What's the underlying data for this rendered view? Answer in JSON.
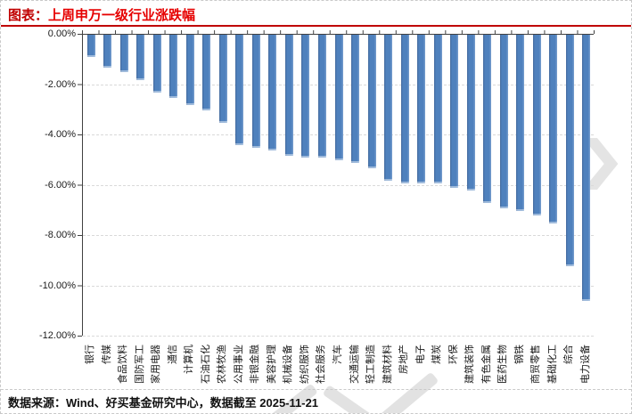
{
  "header": {
    "prefix": "图表：",
    "title": "上周申万一级行业涨跌幅"
  },
  "footer": {
    "source": "数据来源：Wind、好买基金研究中心，数据截至 2025-11-21"
  },
  "icons": {
    "watermark_chevron": "❯"
  },
  "colors": {
    "bar": "#4f81bd",
    "title_red": "#e60000",
    "rule_red": "#c00000",
    "gridline": "#d9d9d9",
    "axis": "#404040"
  },
  "chart_data": {
    "type": "bar",
    "title": "上周申万一级行业涨跌幅",
    "xlabel": "",
    "ylabel": "",
    "legend": "none",
    "grid": "horizontal dashed",
    "ylim": [
      -12,
      0
    ],
    "yticks": [
      "0.00%",
      "-2.00%",
      "-4.00%",
      "-6.00%",
      "-8.00%",
      "-10.00%",
      "-12.00%"
    ],
    "categories": [
      "银行",
      "传媒",
      "食品饮料",
      "国防军工",
      "家用电器",
      "通信",
      "计算机",
      "石油石化",
      "农林牧渔",
      "公用事业",
      "非银金融",
      "美容护理",
      "机械设备",
      "纺织服饰",
      "社会服务",
      "汽车",
      "交通运输",
      "轻工制造",
      "建筑材料",
      "房地产",
      "电子",
      "煤炭",
      "环保",
      "建筑装饰",
      "有色金属",
      "医药生物",
      "钢铁",
      "商贸零售",
      "基础化工",
      "综合",
      "电力设备"
    ],
    "values": [
      -0.9,
      -1.3,
      -1.5,
      -1.8,
      -2.3,
      -2.5,
      -2.8,
      -3.0,
      -3.5,
      -4.4,
      -4.5,
      -4.6,
      -4.8,
      -4.9,
      -4.9,
      -5.0,
      -5.1,
      -5.3,
      -5.8,
      -5.9,
      -5.9,
      -5.9,
      -6.1,
      -6.2,
      -6.7,
      -6.9,
      -7.0,
      -7.2,
      -7.5,
      -9.2,
      -10.6
    ],
    "value_unit": "%"
  }
}
